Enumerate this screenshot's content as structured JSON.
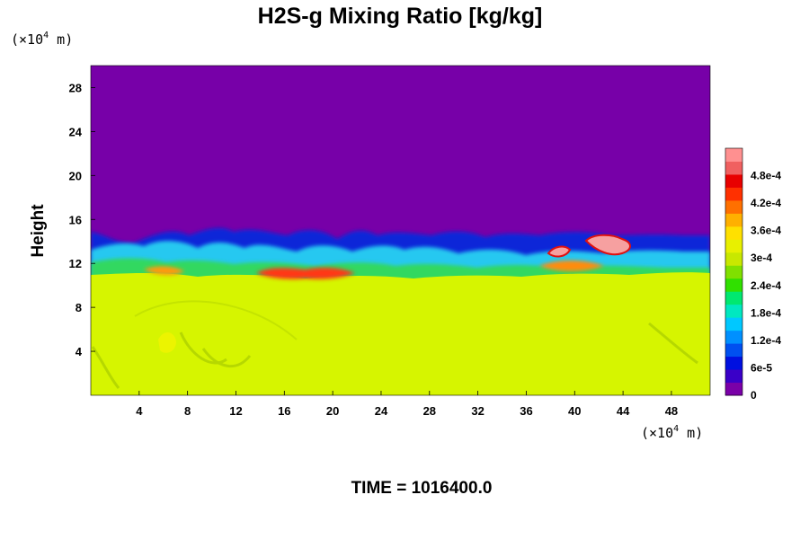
{
  "chart_data": {
    "type": "heatmap",
    "title": "H2S-g Mixing Ratio [kg/kg]",
    "variable": "H2S-g Mixing Ratio",
    "units": "kg/kg",
    "ylabel": "Height",
    "y_unit": {
      "prefix": "(×10",
      "exp": "4",
      "suffix": " m)"
    },
    "x_unit": {
      "prefix": "(×10",
      "exp": "4",
      "suffix": " m)"
    },
    "xlim": [
      0,
      51.2
    ],
    "ylim": [
      0,
      30
    ],
    "x_ticks": [
      4,
      8,
      12,
      16,
      20,
      24,
      28,
      32,
      36,
      40,
      44,
      48
    ],
    "y_ticks": [
      4,
      8,
      12,
      16,
      20,
      24,
      28
    ],
    "colorbar": {
      "range": [
        0,
        0.00054
      ],
      "labels": [
        "0",
        "6e-5",
        "1.2e-4",
        "1.8e-4",
        "2.4e-4",
        "3e-4",
        "3.6e-4",
        "4.2e-4",
        "4.8e-4"
      ],
      "label_values": [
        0,
        6e-05,
        0.00012,
        0.00018,
        0.00024,
        0.0003,
        0.00036,
        0.00042,
        0.00048
      ],
      "colors": [
        "#7a00a8",
        "#3a00c8",
        "#0010e0",
        "#0050f0",
        "#0090ff",
        "#00c8ff",
        "#00e8c0",
        "#00e870",
        "#30e000",
        "#80e000",
        "#c8e800",
        "#e8f000",
        "#ffe000",
        "#ffb000",
        "#ff7000",
        "#ff3000",
        "#e80000",
        "#f06060",
        "#ff9090"
      ]
    },
    "regions": {
      "background_upper": {
        "value": 0,
        "color": "#7700a8"
      },
      "lower_layer": {
        "value": 0.00033,
        "color": "#d6f500"
      },
      "interface_height_approx": 13
    },
    "time_label": "TIME = 1016400.0",
    "grid": false
  }
}
